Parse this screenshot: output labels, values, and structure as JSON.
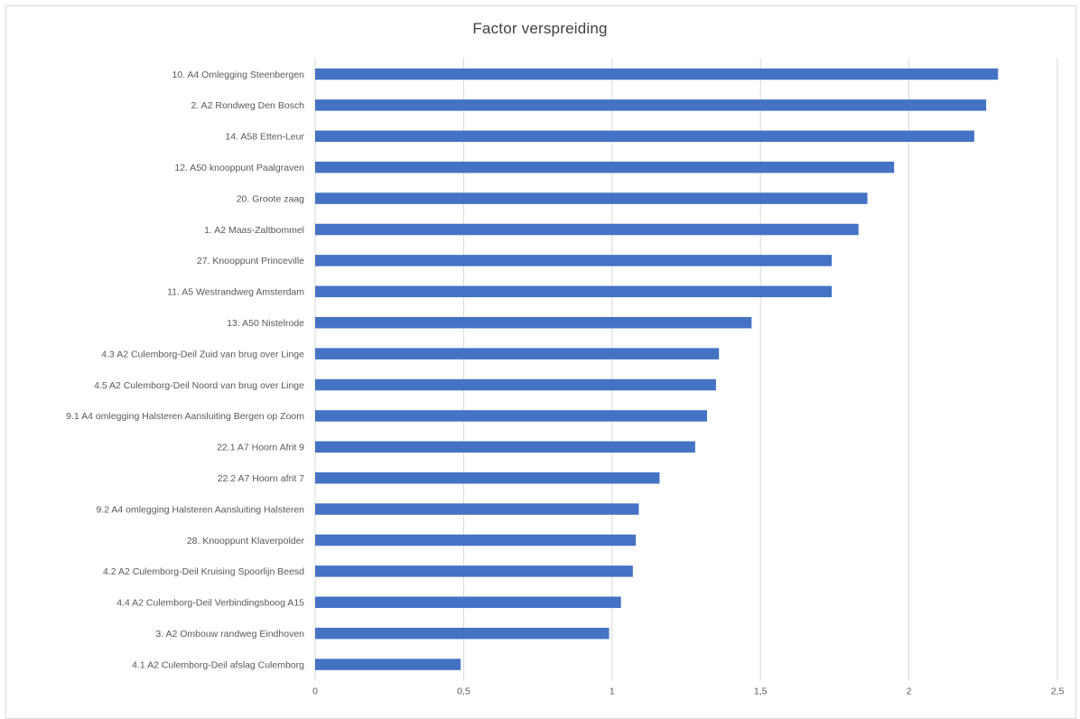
{
  "chart_data": {
    "type": "bar",
    "orientation": "horizontal",
    "title": "Factor verspreiding",
    "xlabel": "",
    "ylabel": "",
    "xlim": [
      0,
      2.5
    ],
    "x_ticks": [
      "0",
      "0,5",
      "1",
      "1,5",
      "2",
      "2,5"
    ],
    "x_tick_values": [
      0,
      0.5,
      1,
      1.5,
      2,
      2.5
    ],
    "grid": "vertical major gridlines",
    "legend": "none",
    "bar_color": "#4472c4",
    "categories": [
      "10. A4 Omlegging Steenbergen",
      "2. A2 Rondweg Den Bosch",
      "14. A58 Etten-Leur",
      "12. A50 knooppunt Paalgraven",
      "20. Groote zaag",
      "1. A2 Maas-Zaltbommel",
      "27. Knooppunt Princeville",
      "11. A5 Westrandweg Amsterdam",
      "13. A50 Nistelrode",
      "4.3 A2 Culemborg-Deil Zuid van brug over Linge",
      "4.5 A2 Culemborg-Deil Noord van brug over Linge",
      "9.1 A4 omlegging Halsteren Aansluiting Bergen op Zoom",
      "22.1 A7 Hoorn Afrit 9",
      "22.2 A7 Hoorn afrit 7",
      "9.2 A4 omlegging Halsteren Aansluiting Halsteren",
      "28. Knooppunt Klaverpolder",
      "4.2 A2 Culemborg-Deil Kruising Spoorlijn Beesd",
      "4.4 A2 Culemborg-Deil Verbindingsboog A15",
      "3. A2 Ombouw randweg Eindhoven",
      "4.1 A2 Culemborg-Deil afslag Culemborg"
    ],
    "values": [
      2.3,
      2.26,
      2.22,
      1.95,
      1.86,
      1.83,
      1.74,
      1.74,
      1.47,
      1.36,
      1.35,
      1.32,
      1.28,
      1.16,
      1.09,
      1.08,
      1.07,
      1.03,
      0.99,
      0.49
    ]
  }
}
